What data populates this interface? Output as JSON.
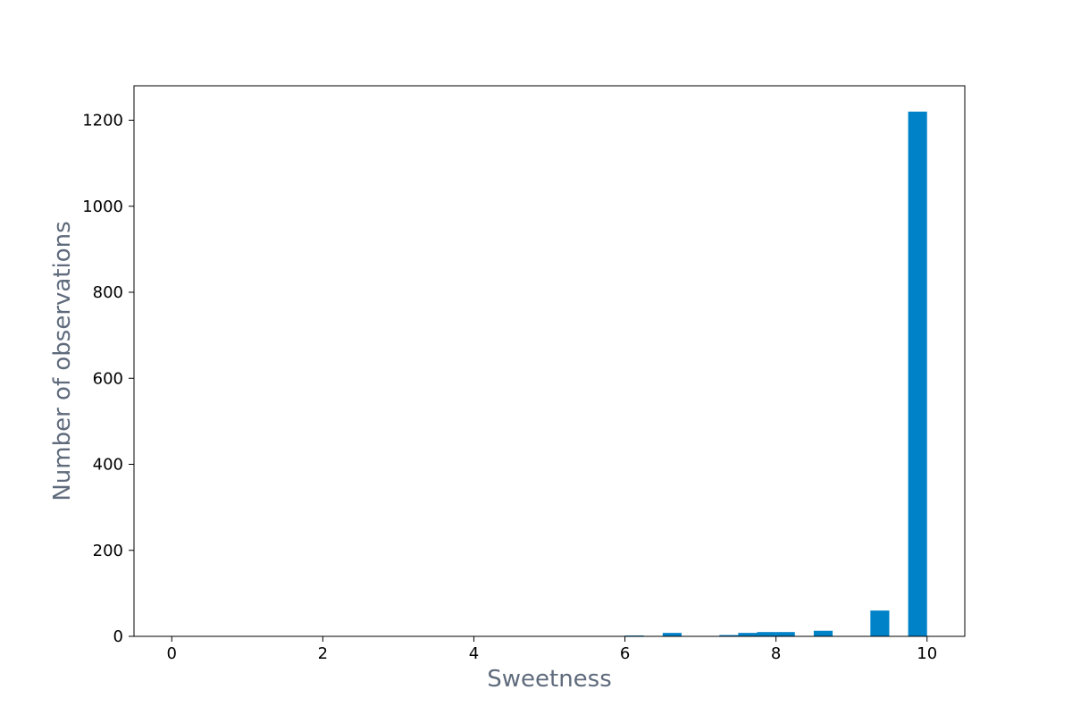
{
  "chart_data": {
    "type": "bar",
    "xlabel": "Sweetness",
    "ylabel": "Number of observations",
    "xlim": [
      -0.5,
      10.5
    ],
    "ylim": [
      0,
      1280
    ],
    "x_ticks": [
      0,
      2,
      4,
      6,
      8,
      10
    ],
    "y_ticks": [
      0,
      200,
      400,
      600,
      800,
      1000,
      1200
    ],
    "grid": false,
    "bar_color": "#0082c8",
    "bar_width": 0.25,
    "x": [
      6.125,
      6.625,
      7.375,
      7.625,
      7.875,
      8.125,
      8.625,
      9.375,
      9.875
    ],
    "values": [
      2,
      8,
      3,
      8,
      10,
      10,
      13,
      60,
      1220
    ]
  }
}
